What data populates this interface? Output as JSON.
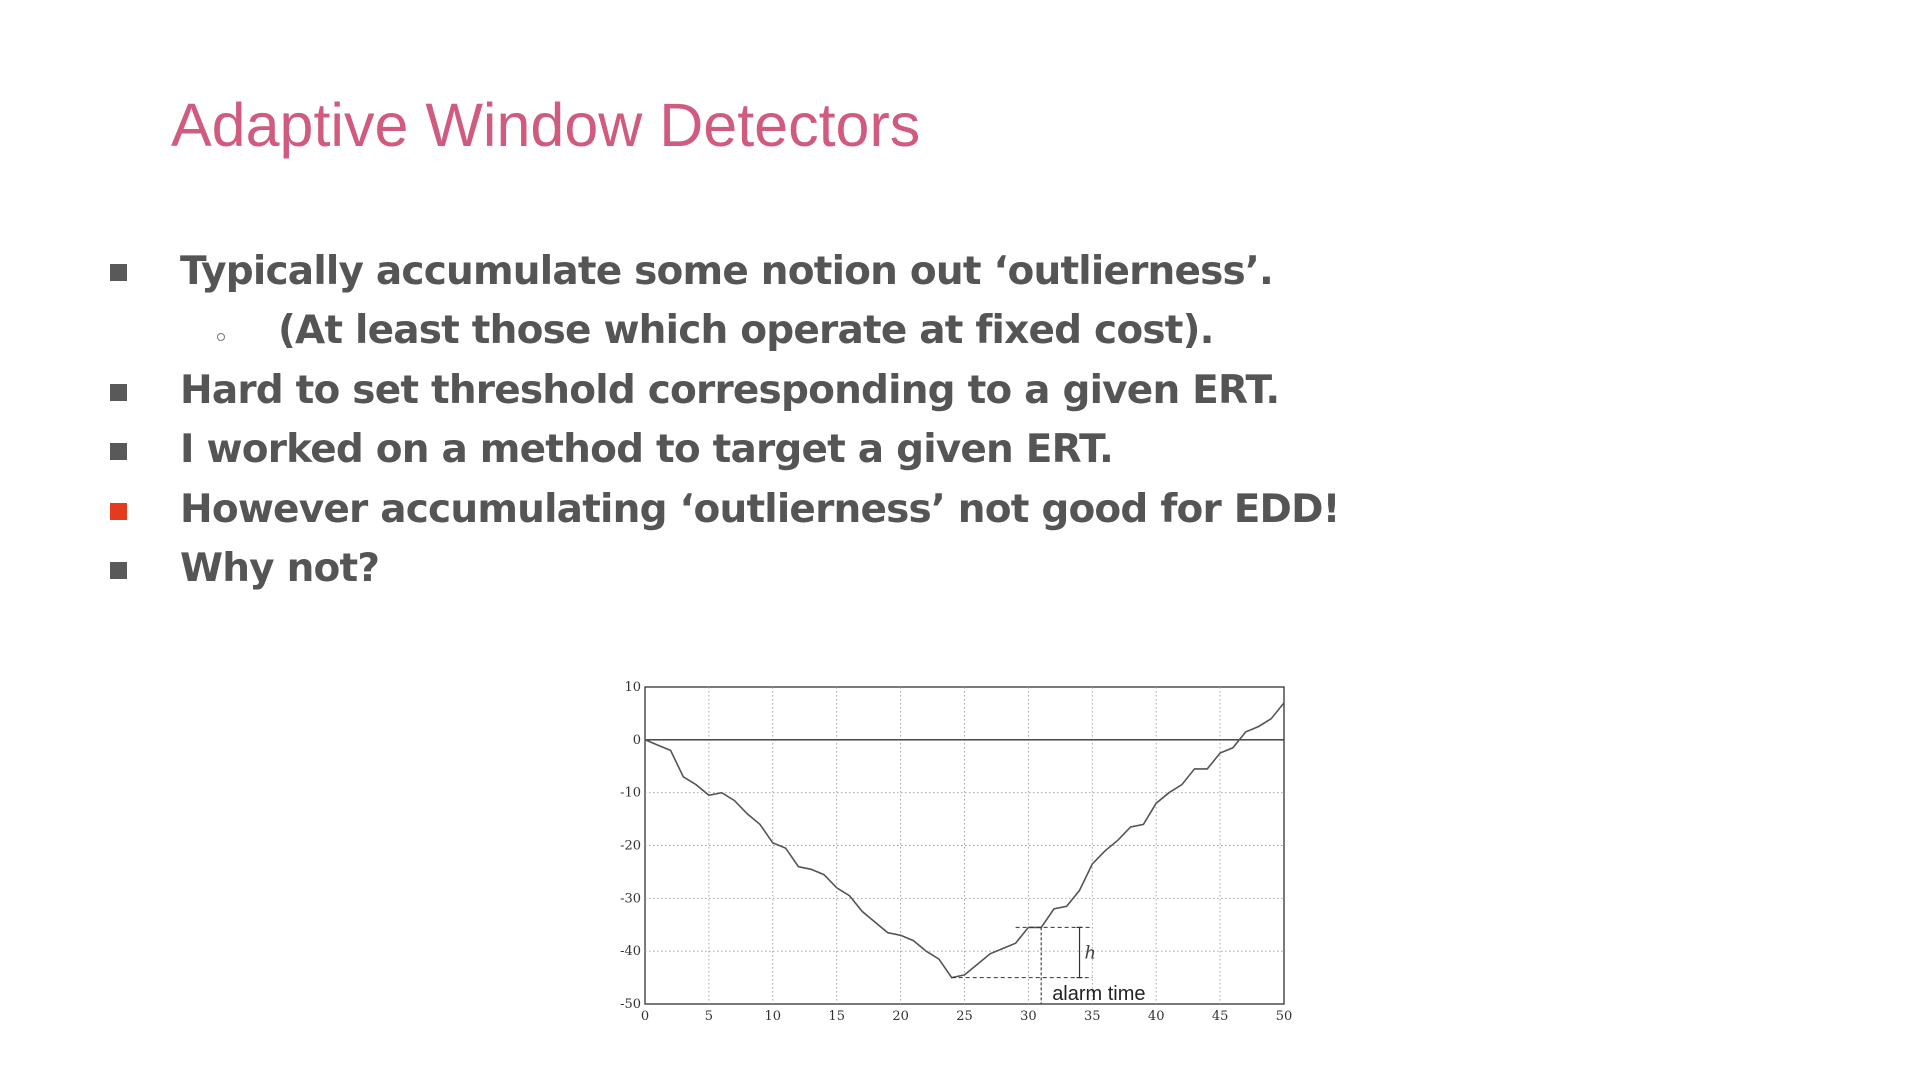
{
  "slide": {
    "title": "Adaptive Window Detectors",
    "bullets": [
      {
        "text": "Typically accumulate some notion out ‘outlierness’.",
        "level": 1,
        "marker_color": "#595959"
      },
      {
        "text": "(At least those which operate at fixed cost).",
        "level": 2,
        "marker_color": "#777777"
      },
      {
        "text": "Hard to set threshold corresponding to a given ERT.",
        "level": 1,
        "marker_color": "#595959"
      },
      {
        "text": "I worked on a method to target a given ERT.",
        "level": 1,
        "marker_color": "#595959"
      },
      {
        "text": "However accumulating ‘outlierness’ not good for EDD!",
        "level": 1,
        "marker_color": "#e63a1f"
      },
      {
        "text": "Why not?",
        "level": 1,
        "marker_color": "#595959"
      }
    ],
    "colors": {
      "title": "#d15b7e",
      "text": "#555555",
      "accent_bullet": "#e63a1f"
    }
  },
  "chart_data": {
    "type": "line",
    "title": "",
    "xlabel": "",
    "ylabel": "",
    "xlim": [
      0,
      50
    ],
    "ylim": [
      -50,
      10
    ],
    "x_ticks": [
      0,
      5,
      10,
      15,
      20,
      25,
      30,
      35,
      40,
      45,
      50
    ],
    "y_ticks": [
      10,
      0,
      -10,
      -20,
      -30,
      -40,
      -50
    ],
    "x_tick_labels": [
      "0",
      "5",
      "10",
      "15",
      "20",
      "25",
      "30",
      "35",
      "40",
      "45",
      "50"
    ],
    "y_tick_labels": [
      "10",
      "0",
      "-10",
      "-20",
      "-30",
      "-40",
      "-50"
    ],
    "grid": true,
    "reference_line_y": 0,
    "series": [
      {
        "x": [
          1,
          2,
          3,
          4,
          5,
          6,
          7,
          8,
          9,
          10,
          11,
          12,
          13,
          14,
          15,
          16,
          17,
          18,
          19,
          20,
          21,
          22,
          23,
          24,
          25,
          26,
          27,
          28,
          29,
          30,
          31,
          32,
          33,
          34,
          35,
          36,
          37,
          38,
          39,
          40,
          41,
          42,
          43,
          44,
          45,
          46,
          47,
          48,
          49,
          50
        ],
        "values": [
          -1,
          -2,
          -7,
          -8.5,
          -10.5,
          -10,
          -11.5,
          -14,
          -16,
          -19.5,
          -20.5,
          -24,
          -24.5,
          -25.5,
          -28,
          -29.5,
          -32.5,
          -34.5,
          -36.5,
          -37,
          -38,
          -40,
          -41.5,
          -45,
          -44.5,
          -42.5,
          -40.5,
          -39.5,
          -38.5,
          -35.5,
          -35.5,
          -32,
          -31.5,
          -28.5,
          -23.5,
          -21,
          -19,
          -16.5,
          -16,
          -12,
          -10,
          -8.5,
          -5.5,
          -5.5,
          -2.5,
          -1.5,
          1.5,
          2.5,
          4,
          7
        ]
      }
    ],
    "annotations": {
      "alarm_label": "alarm time",
      "threshold_label": "h",
      "minimum_value": -45,
      "alarm_value": -35.5,
      "alarm_x": 31
    }
  }
}
